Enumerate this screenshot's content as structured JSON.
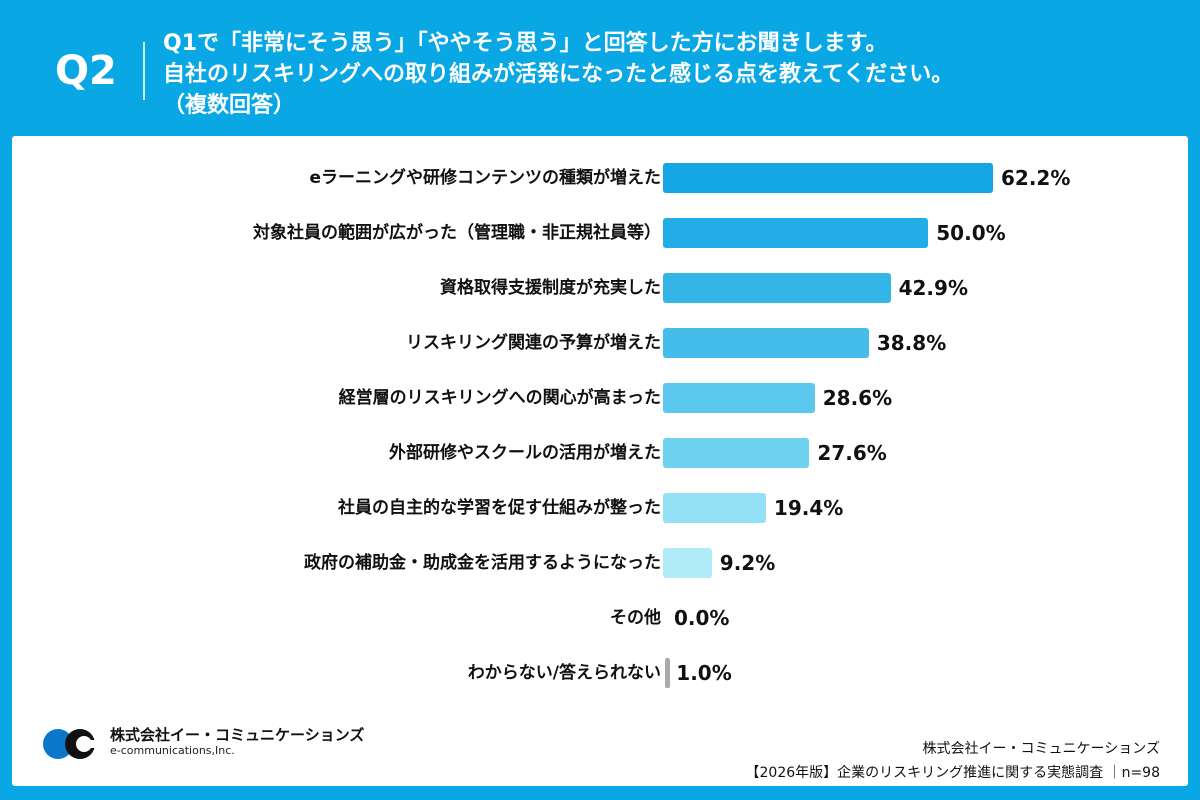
{
  "header": {
    "question_no": "Q2",
    "lines": [
      "Q1で「非常にそう思う」「ややそう思う」と回答した方にお聞きします。",
      "自社のリスキリングへの取り組みが活発になったと感じる点を教えてください。",
      "（複数回答）"
    ]
  },
  "chart_data": {
    "type": "bar",
    "orientation": "horizontal",
    "categories": [
      "eラーニングや研修コンテンツの種類が増えた",
      "対象社員の範囲が広がった（管理職・非正規社員等）",
      "資格取得支援制度が充実した",
      "リスキリング関連の予算が増えた",
      "経営層のリスキリングへの関心が高まった",
      "外部研修やスクールの活用が増えた",
      "社員の自主的な学習を促す仕組みが整った",
      "政府の補助金・助成金を活用するようになった",
      "その他",
      "わからない/答えられない"
    ],
    "values": [
      62.2,
      50.0,
      42.9,
      38.8,
      28.6,
      27.6,
      19.4,
      9.2,
      0.0,
      1.0
    ],
    "value_labels": [
      "62.2%",
      "50.0%",
      "42.9%",
      "38.8%",
      "28.6%",
      "27.6%",
      "19.4%",
      "9.2%",
      "0.0%",
      "1.0%"
    ],
    "colors": [
      "#14a6e4",
      "#22ade6",
      "#33b5e8",
      "#44bdea",
      "#5cc8ee",
      "#70d2f1",
      "#94e1f6",
      "#b0ebf8",
      "#c5f0fa",
      "#aaaaaa"
    ],
    "xlim": [
      0,
      70
    ],
    "grid": false
  },
  "footer": {
    "logo_name": "株式会社イー・コミュニケーションズ",
    "logo_sub": "e-communications,Inc.",
    "logo_mark_text": "e-communications",
    "company": "株式会社イー・コミュニケーションズ",
    "survey": "【2026年版】企業のリスキリング推進に関する実態調査 ｜n=98"
  }
}
